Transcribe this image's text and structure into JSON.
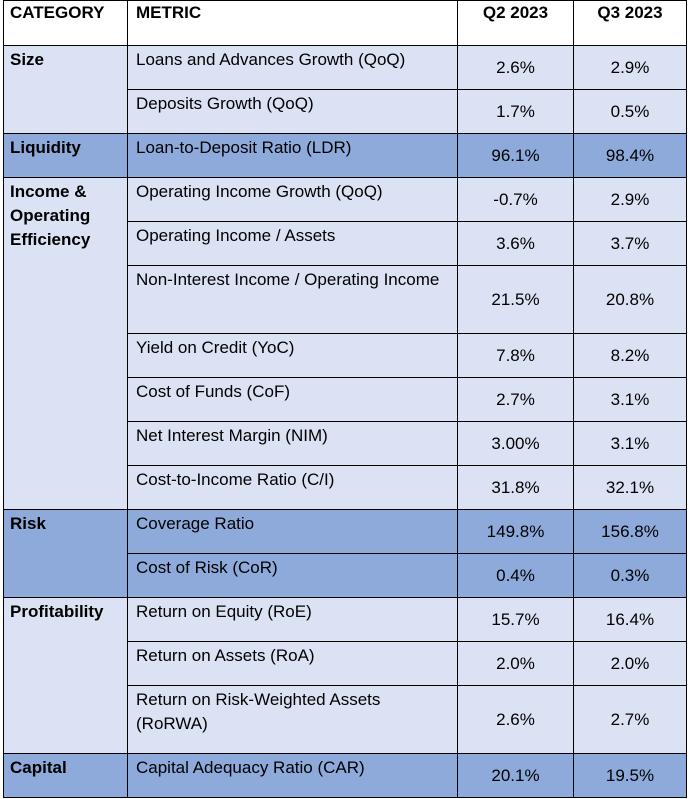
{
  "headers": {
    "category": "CATEGORY",
    "metric": "METRIC",
    "q2": "Q2 2023",
    "q3": "Q3 2023"
  },
  "categories": [
    {
      "name": "Size",
      "style": "light"
    },
    {
      "name": "Liquidity",
      "style": "dark"
    },
    {
      "name": "Income & Operating Efficiency",
      "style": "light"
    },
    {
      "name": "Risk",
      "style": "dark"
    },
    {
      "name": "Profitability",
      "style": "light"
    },
    {
      "name": "Capital",
      "style": "dark"
    }
  ],
  "rows": [
    {
      "metric": "Loans and Advances Growth (QoQ)",
      "q2": "2.6%",
      "q3": "2.9%"
    },
    {
      "metric": "Deposits Growth (QoQ)",
      "q2": "1.7%",
      "q3": "0.5%"
    },
    {
      "metric": "Loan-to-Deposit Ratio (LDR)",
      "q2": "96.1%",
      "q3": "98.4%"
    },
    {
      "metric": "Operating Income Growth (QoQ)",
      "q2": "-0.7%",
      "q3": "2.9%"
    },
    {
      "metric": "Operating Income / Assets",
      "q2": "3.6%",
      "q3": "3.7%"
    },
    {
      "metric": "Non-Interest Income / Operating Income",
      "q2": "21.5%",
      "q3": "20.8%"
    },
    {
      "metric": "Yield on Credit (YoC)",
      "q2": "7.8%",
      "q3": "8.2%"
    },
    {
      "metric": "Cost of Funds (CoF)",
      "q2": "2.7%",
      "q3": "3.1%"
    },
    {
      "metric": "Net Interest Margin (NIM)",
      "q2": "3.00%",
      "q3": "3.1%"
    },
    {
      "metric": "Cost-to-Income Ratio (C/I)",
      "q2": "31.8%",
      "q3": "32.1%"
    },
    {
      "metric": "Coverage Ratio",
      "q2": "149.8%",
      "q3": "156.8%"
    },
    {
      "metric": "Cost of Risk (CoR)",
      "q2": "0.4%",
      "q3": "0.3%"
    },
    {
      "metric": "Return on Equity (RoE)",
      "q2": "15.7%",
      "q3": "16.4%"
    },
    {
      "metric": "Return on Assets (RoA)",
      "q2": "2.0%",
      "q3": "2.0%"
    },
    {
      "metric": "Return on Risk-Weighted Assets (RoRWA)",
      "q2": "2.6%",
      "q3": "2.7%"
    },
    {
      "metric": "Capital Adequacy Ratio (CAR)",
      "q2": "20.1%",
      "q3": "19.5%"
    }
  ],
  "colors": {
    "light_band": "#dbe2f4",
    "dark_band": "#8eaadb",
    "border": "#000000"
  }
}
